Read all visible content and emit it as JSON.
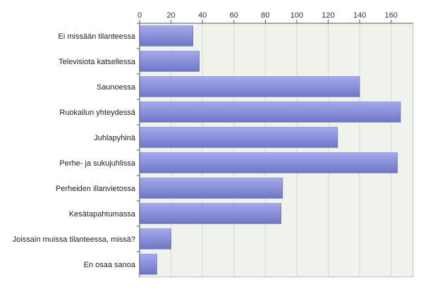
{
  "chart_data": {
    "type": "bar",
    "orientation": "horizontal",
    "categories": [
      "Ei missään tilanteessa",
      "Televisiota katsellessa",
      "Saunoessa",
      "Ruokailun yhteydessä",
      "Juhlapyhinä",
      "Perhe- ja sukujuhlissa",
      "Perheiden illanvietossa",
      "Kesätapahtumassa",
      "Joissain muissa tilanteessa, missä?",
      "En osaa sanoa"
    ],
    "values": [
      34,
      38,
      140,
      166,
      126,
      164,
      91,
      90,
      20,
      11
    ],
    "xlim": [
      0,
      174
    ],
    "x_ticks": [
      0,
      20,
      40,
      60,
      80,
      100,
      120,
      140,
      160
    ],
    "x_axis_position": "top",
    "grid": true,
    "title": "",
    "xlabel": "",
    "ylabel": "",
    "colors": {
      "bar_top": "#a4a9ec",
      "bar_bottom": "#6f76c8",
      "bar_edge": "#5a62b4",
      "plot_bg": "#f0f2ec",
      "grid": "#d6d9d2",
      "axis": "#555555"
    }
  }
}
